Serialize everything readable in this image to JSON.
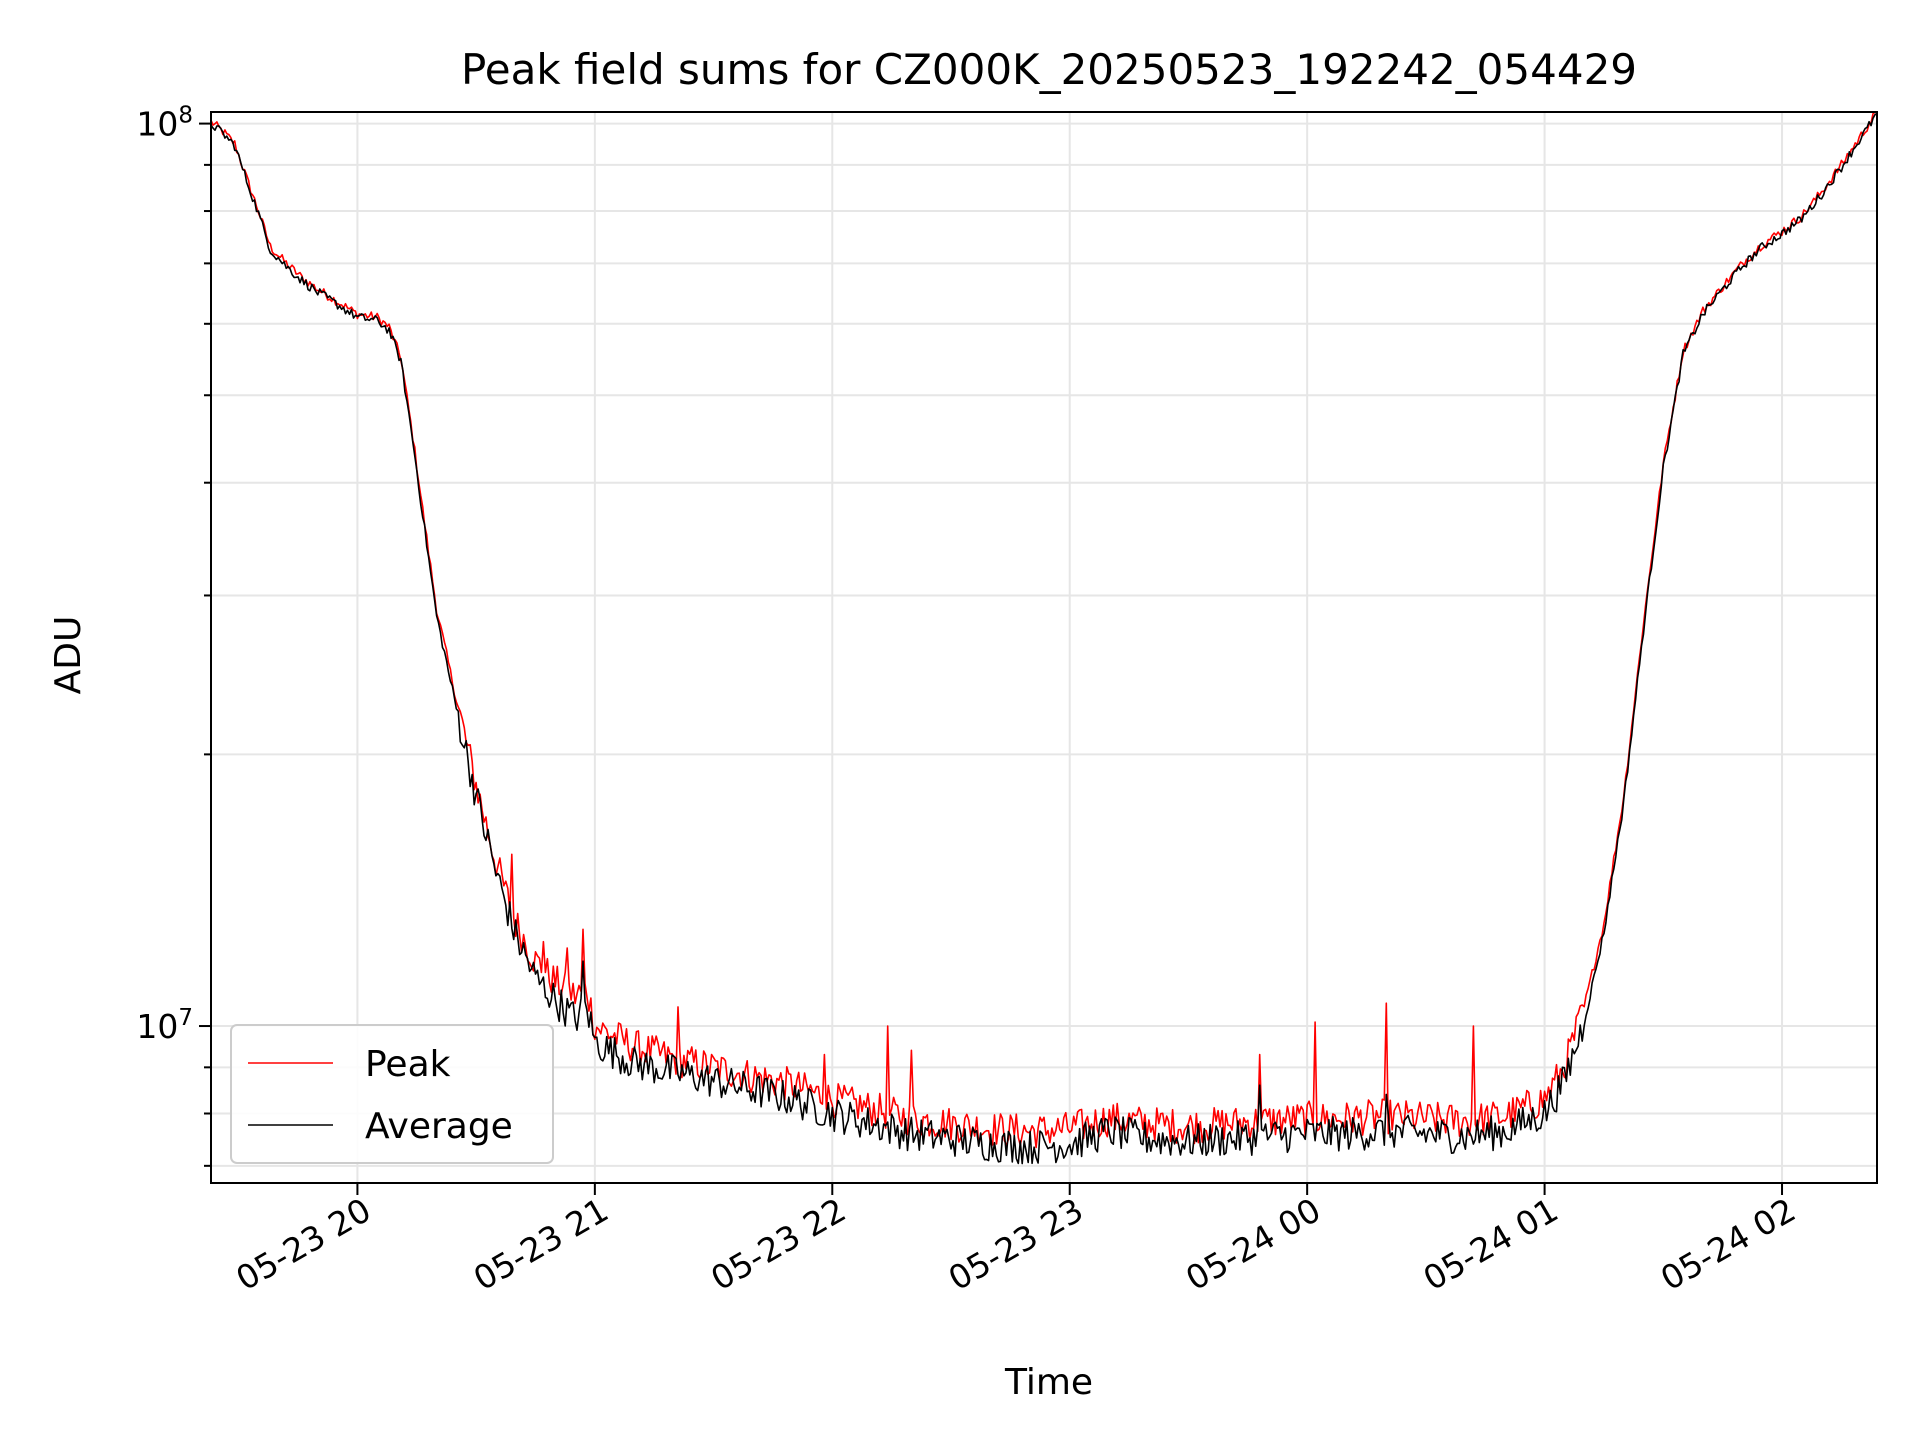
{
  "chart_data": {
    "type": "line",
    "title": "Peak field sums for CZ000K_20250523_192242_054429",
    "xlabel": "Time",
    "ylabel": "ADU",
    "y_scale": "log",
    "ylim": [
      6700000,
      103000000
    ],
    "xlim": [
      "2025-05-23 19:23",
      "2025-05-24 02:24"
    ],
    "x_ticks": [
      {
        "value": "2025-05-23 20:00",
        "label": "05-23 20"
      },
      {
        "value": "2025-05-23 21:00",
        "label": "05-23 21"
      },
      {
        "value": "2025-05-23 22:00",
        "label": "05-23 22"
      },
      {
        "value": "2025-05-23 23:00",
        "label": "05-23 23"
      },
      {
        "value": "2025-05-24 00:00",
        "label": "05-24 00"
      },
      {
        "value": "2025-05-24 01:00",
        "label": "05-24 01"
      },
      {
        "value": "2025-05-24 02:00",
        "label": "05-24 02"
      }
    ],
    "y_ticks": [
      {
        "value": 10000000,
        "base": "10",
        "exp": "7"
      },
      {
        "value": 100000000,
        "base": "10",
        "exp": "8"
      }
    ],
    "grid": true,
    "legend_position": "lower-left",
    "series": [
      {
        "name": "Peak",
        "color": "#ff0000",
        "x": [
          "2025-05-23 19:23",
          "2025-05-23 19:26",
          "2025-05-23 19:29",
          "2025-05-23 19:32",
          "2025-05-23 19:35",
          "2025-05-23 19:38",
          "2025-05-23 19:42",
          "2025-05-23 19:46",
          "2025-05-23 19:50",
          "2025-05-23 19:55",
          "2025-05-23 20:00",
          "2025-05-23 20:05",
          "2025-05-23 20:08",
          "2025-05-23 20:11",
          "2025-05-23 20:14",
          "2025-05-23 20:17",
          "2025-05-23 20:20",
          "2025-05-23 20:25",
          "2025-05-23 20:30",
          "2025-05-23 20:35",
          "2025-05-23 20:40",
          "2025-05-23 20:45",
          "2025-05-23 20:50",
          "2025-05-23 20:55",
          "2025-05-23 20:58",
          "2025-05-23 21:00",
          "2025-05-23 21:10",
          "2025-05-23 21:20",
          "2025-05-23 21:30",
          "2025-05-23 21:40",
          "2025-05-23 21:50",
          "2025-05-23 22:00",
          "2025-05-23 22:10",
          "2025-05-23 22:20",
          "2025-05-23 22:30",
          "2025-05-23 22:40",
          "2025-05-23 22:50",
          "2025-05-23 23:00",
          "2025-05-23 23:10",
          "2025-05-23 23:20",
          "2025-05-23 23:30",
          "2025-05-23 23:40",
          "2025-05-23 23:50",
          "2025-05-24 00:00",
          "2025-05-24 00:10",
          "2025-05-24 00:20",
          "2025-05-24 00:30",
          "2025-05-24 00:40",
          "2025-05-24 00:50",
          "2025-05-24 01:00",
          "2025-05-24 01:05",
          "2025-05-24 01:10",
          "2025-05-24 01:15",
          "2025-05-24 01:20",
          "2025-05-24 01:25",
          "2025-05-24 01:30",
          "2025-05-24 01:35",
          "2025-05-24 01:40",
          "2025-05-24 01:45",
          "2025-05-24 01:50",
          "2025-05-24 01:55",
          "2025-05-24 02:00",
          "2025-05-24 02:05",
          "2025-05-24 02:10",
          "2025-05-24 02:15",
          "2025-05-24 02:20",
          "2025-05-24 02:24"
        ],
        "values": [
          100500000,
          98000000,
          95000000,
          87000000,
          80000000,
          73000000,
          70000000,
          67500000,
          65500000,
          63500000,
          61500000,
          61000000,
          59500000,
          55000000,
          45000000,
          36000000,
          29000000,
          23000000,
          18500000,
          15200000,
          13000000,
          11800000,
          11200000,
          10800000,
          11000000,
          10000000,
          9500000,
          9200000,
          9000000,
          8800000,
          8600000,
          8300000,
          8100000,
          7900000,
          7800000,
          7700000,
          7650000,
          7700000,
          7900000,
          7800000,
          7750000,
          7800000,
          7850000,
          7900000,
          7900000,
          7950000,
          7900000,
          7850000,
          7950000,
          8300000,
          9000000,
          10500000,
          13000000,
          18000000,
          28000000,
          42000000,
          56000000,
          62000000,
          66000000,
          70000000,
          73500000,
          76000000,
          79000000,
          84000000,
          90000000,
          97000000,
          103000000
        ],
        "spikes": [
          {
            "x": "2025-05-23 20:39",
            "value": 15500000
          },
          {
            "x": "2025-05-23 20:47",
            "value": 12400000
          },
          {
            "x": "2025-05-23 20:53",
            "value": 12200000
          },
          {
            "x": "2025-05-23 20:57",
            "value": 12800000
          },
          {
            "x": "2025-05-23 21:21",
            "value": 10500000
          },
          {
            "x": "2025-05-23 21:58",
            "value": 9300000
          },
          {
            "x": "2025-05-23 22:14",
            "value": 10000000
          },
          {
            "x": "2025-05-23 22:20",
            "value": 9400000
          },
          {
            "x": "2025-05-23 23:48",
            "value": 9300000
          },
          {
            "x": "2025-05-24 00:02",
            "value": 10100000
          },
          {
            "x": "2025-05-24 00:20",
            "value": 10600000
          },
          {
            "x": "2025-05-24 00:42",
            "value": 10000000
          }
        ]
      },
      {
        "name": "Average",
        "color": "#000000",
        "x": [
          "2025-05-23 19:23",
          "2025-05-23 19:26",
          "2025-05-23 19:29",
          "2025-05-23 19:32",
          "2025-05-23 19:35",
          "2025-05-23 19:38",
          "2025-05-23 19:42",
          "2025-05-23 19:46",
          "2025-05-23 19:50",
          "2025-05-23 19:55",
          "2025-05-23 20:00",
          "2025-05-23 20:05",
          "2025-05-23 20:08",
          "2025-05-23 20:11",
          "2025-05-23 20:14",
          "2025-05-23 20:17",
          "2025-05-23 20:20",
          "2025-05-23 20:25",
          "2025-05-23 20:30",
          "2025-05-23 20:35",
          "2025-05-23 20:40",
          "2025-05-23 20:45",
          "2025-05-23 20:50",
          "2025-05-23 20:55",
          "2025-05-23 20:58",
          "2025-05-23 21:00",
          "2025-05-23 21:10",
          "2025-05-23 21:20",
          "2025-05-23 21:30",
          "2025-05-23 21:40",
          "2025-05-23 21:50",
          "2025-05-23 22:00",
          "2025-05-23 22:10",
          "2025-05-23 22:20",
          "2025-05-23 22:30",
          "2025-05-23 22:40",
          "2025-05-23 22:50",
          "2025-05-23 23:00",
          "2025-05-23 23:10",
          "2025-05-23 23:20",
          "2025-05-23 23:30",
          "2025-05-23 23:40",
          "2025-05-23 23:50",
          "2025-05-24 00:00",
          "2025-05-24 00:10",
          "2025-05-24 00:20",
          "2025-05-24 00:30",
          "2025-05-24 00:40",
          "2025-05-24 00:50",
          "2025-05-24 01:00",
          "2025-05-24 01:05",
          "2025-05-24 01:10",
          "2025-05-24 01:15",
          "2025-05-24 01:20",
          "2025-05-24 01:25",
          "2025-05-24 01:30",
          "2025-05-24 01:35",
          "2025-05-24 01:40",
          "2025-05-24 01:45",
          "2025-05-24 01:50",
          "2025-05-24 01:55",
          "2025-05-24 02:00",
          "2025-05-24 02:05",
          "2025-05-24 02:10",
          "2025-05-24 02:15",
          "2025-05-24 02:20",
          "2025-05-24 02:24"
        ],
        "values": [
          100000000,
          97500000,
          94500000,
          86500000,
          79500000,
          72500000,
          69500000,
          67000000,
          65000000,
          63000000,
          61000000,
          60500000,
          59000000,
          54500000,
          44500000,
          35500000,
          28500000,
          22500000,
          18000000,
          14800000,
          12600000,
          11300000,
          10700000,
          10200000,
          10500000,
          9600000,
          9100000,
          8900000,
          8700000,
          8500000,
          8300000,
          8000000,
          7800000,
          7600000,
          7500000,
          7400000,
          7350000,
          7400000,
          7650000,
          7500000,
          7450000,
          7500000,
          7550000,
          7600000,
          7600000,
          7650000,
          7600000,
          7550000,
          7650000,
          8000000,
          8700000,
          10100000,
          12700000,
          17700000,
          27500000,
          41500000,
          55500000,
          61500000,
          65500000,
          69500000,
          73000000,
          75500000,
          78500000,
          83500000,
          89500000,
          96500000,
          102500000
        ],
        "spikes": [
          {
            "x": "2025-05-23 20:57",
            "value": 11800000
          },
          {
            "x": "2025-05-23 23:48",
            "value": 8600000
          },
          {
            "x": "2025-05-24 00:20",
            "value": 8400000
          }
        ]
      }
    ]
  }
}
